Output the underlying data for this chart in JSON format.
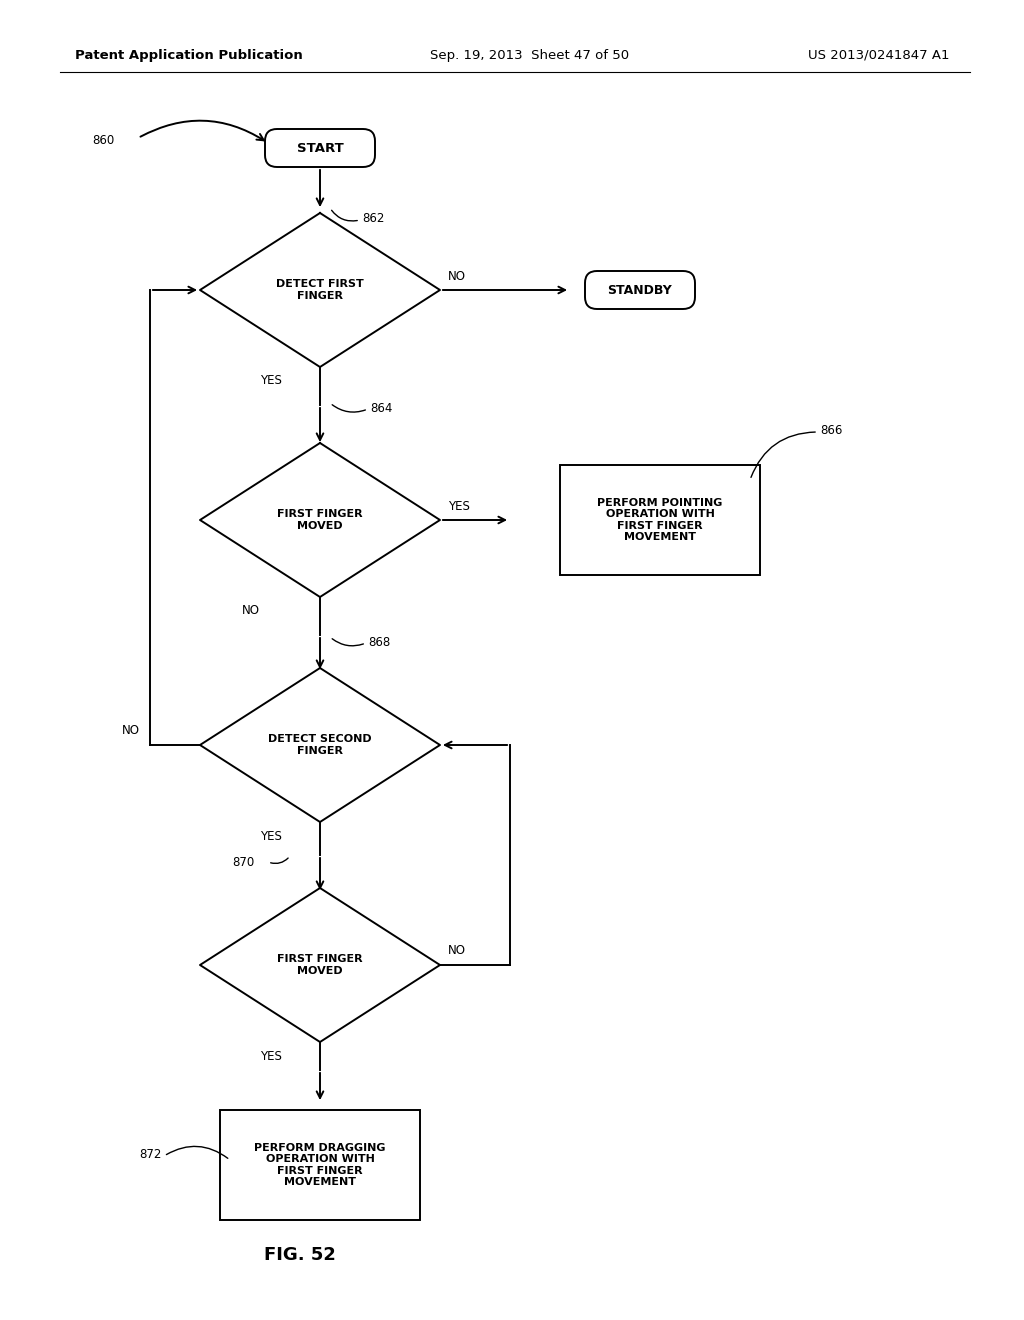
{
  "title_left": "Patent Application Publication",
  "title_mid": "Sep. 19, 2013  Sheet 47 of 50",
  "title_right": "US 2013/0241847 A1",
  "fig_label": "FIG. 52",
  "bg_color": "#ffffff",
  "line_color": "#000000",
  "text_color": "#000000",
  "font_size_header": 9.5,
  "font_size_node": 8.0,
  "font_size_label": 8.5,
  "font_size_fig": 13,
  "lw": 1.4
}
